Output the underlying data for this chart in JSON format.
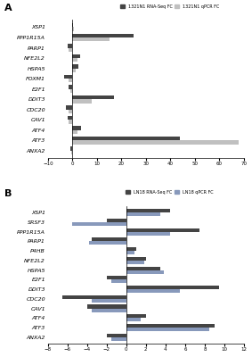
{
  "panel_a": {
    "title": "A",
    "legend": [
      "1321N1 RNA-Seq FC",
      "1321N1 qPCR FC"
    ],
    "legend_colors": [
      "#444444",
      "#c0c0c0"
    ],
    "categories": [
      "XSP1",
      "PPP1R15A",
      "PARP1",
      "NFE2L2",
      "HSPA5",
      "FOXM1",
      "E2F1",
      "DDIT3",
      "CDC20",
      "CAV1",
      "ATF4",
      "ATF3",
      "ANXA2"
    ],
    "rna_seq": [
      0.2,
      25.0,
      -2.0,
      3.0,
      2.5,
      -3.5,
      -1.5,
      17.0,
      -2.5,
      -2.0,
      3.5,
      44.0,
      -1.0
    ],
    "qpcr": [
      0.5,
      15.0,
      -1.5,
      2.0,
      1.5,
      -1.5,
      -1.0,
      8.0,
      -1.5,
      -1.5,
      2.0,
      68.0,
      -0.3
    ],
    "xlim": [
      -10,
      70
    ],
    "xticks": [
      -10,
      0,
      10,
      20,
      30,
      40,
      50,
      60,
      70
    ]
  },
  "panel_b": {
    "title": "B",
    "legend": [
      "LN18 RNA-Seq FC",
      "LN18 qPCR FC"
    ],
    "legend_colors": [
      "#444444",
      "#8899bb"
    ],
    "categories": [
      "XSP1",
      "SRSF3",
      "PPP1R15A",
      "PARP1",
      "P4HB",
      "NFE2L2",
      "HSPA5",
      "E2F1",
      "DDIT3",
      "CDC20",
      "CAV1",
      "ATF4",
      "ATF3",
      "ANXA2"
    ],
    "rna_seq": [
      4.5,
      -2.0,
      7.5,
      -3.5,
      1.0,
      2.0,
      3.5,
      -2.0,
      9.5,
      -6.5,
      -4.0,
      2.0,
      9.0,
      -2.0
    ],
    "qpcr": [
      3.5,
      -5.5,
      4.5,
      -3.8,
      0.8,
      1.8,
      3.8,
      -1.5,
      5.5,
      -3.5,
      -3.5,
      1.5,
      8.5,
      -1.5
    ],
    "xlim": [
      -8,
      12
    ],
    "xticks": [
      -8,
      -6,
      -4,
      -2,
      0,
      2,
      4,
      6,
      8,
      10,
      12
    ]
  }
}
